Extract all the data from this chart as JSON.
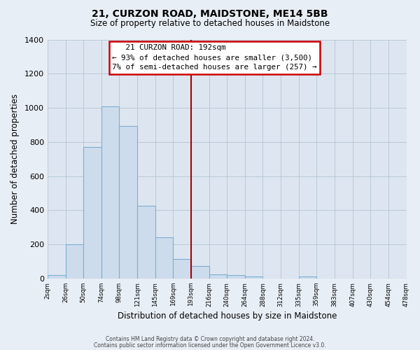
{
  "title": "21, CURZON ROAD, MAIDSTONE, ME14 5BB",
  "subtitle": "Size of property relative to detached houses in Maidstone",
  "xlabel": "Distribution of detached houses by size in Maidstone",
  "ylabel": "Number of detached properties",
  "bin_labels": [
    "2sqm",
    "26sqm",
    "50sqm",
    "74sqm",
    "98sqm",
    "121sqm",
    "145sqm",
    "169sqm",
    "193sqm",
    "216sqm",
    "240sqm",
    "264sqm",
    "288sqm",
    "312sqm",
    "335sqm",
    "359sqm",
    "383sqm",
    "407sqm",
    "430sqm",
    "454sqm",
    "478sqm"
  ],
  "bar_heights": [
    20,
    200,
    770,
    1010,
    895,
    425,
    240,
    115,
    75,
    25,
    20,
    10,
    0,
    0,
    10,
    0,
    0,
    0,
    0,
    0
  ],
  "bar_color": "#cddcec",
  "bar_edge_color": "#7bafd4",
  "vline_label_index": 8,
  "vline_color": "#aa0000",
  "ylim": [
    0,
    1400
  ],
  "yticks": [
    0,
    200,
    400,
    600,
    800,
    1000,
    1200,
    1400
  ],
  "annotation_title": "21 CURZON ROAD: 192sqm",
  "annotation_line1": "← 93% of detached houses are smaller (3,500)",
  "annotation_line2": "7% of semi-detached houses are larger (257) →",
  "annotation_box_color": "#cc0000",
  "footer_line1": "Contains HM Land Registry data © Crown copyright and database right 2024.",
  "footer_line2": "Contains public sector information licensed under the Open Government Licence v3.0.",
  "fig_background_color": "#e8eef5",
  "plot_background_color": "#dde6f0"
}
